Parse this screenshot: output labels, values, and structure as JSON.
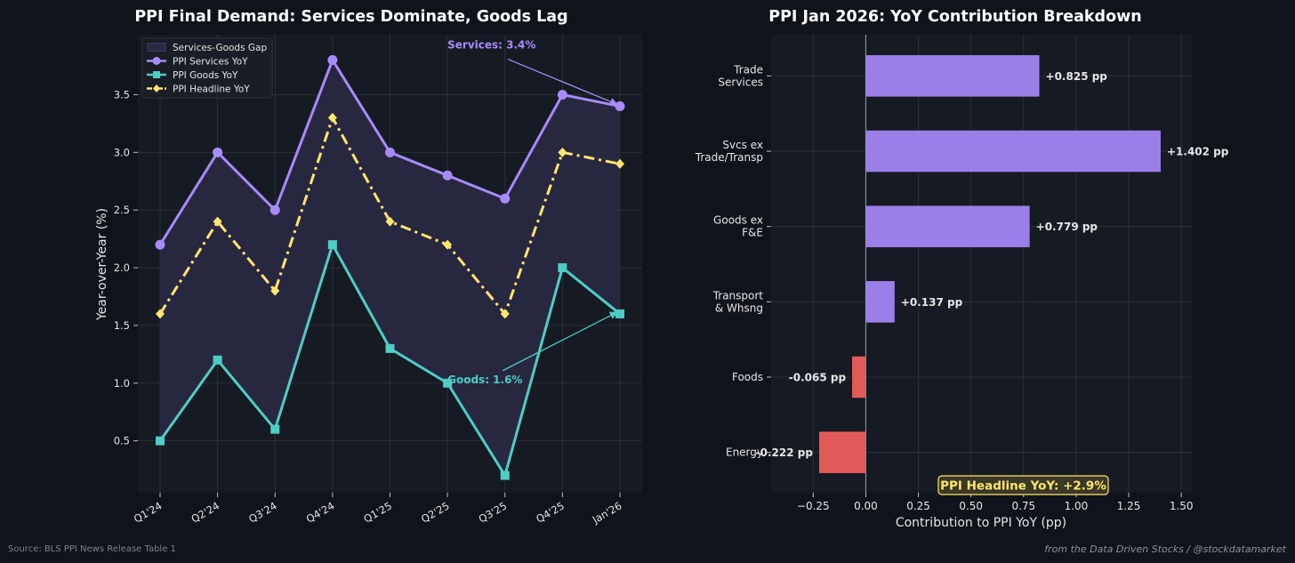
{
  "source_note": "Source: BLS PPI News Release Table 1",
  "credit_note": "from the Data Driven Stocks / @stockdatamarket",
  "colors": {
    "page_bg": "#0f131a",
    "axes_bg": "#161a22",
    "grid": "#2f343d",
    "services": "#a78bfa",
    "goods": "#4ecdc4",
    "headline": "#ffe66d",
    "gap_fill": "#2b2a45",
    "positive_bar": "#9b7fe8",
    "negative_bar": "#e05a5a",
    "text": "#e6e6e6"
  },
  "chart_data": [
    {
      "type": "line",
      "title": "PPI Final Demand: Services Dominate, Goods Lag",
      "xlabel": "",
      "ylabel": "Year-over-Year (%)",
      "categories": [
        "Q1'24",
        "Q2'24",
        "Q3'24",
        "Q4'24",
        "Q1'25",
        "Q2'25",
        "Q3'25",
        "Q4'25",
        "Jan'26"
      ],
      "ylim": [
        0.05,
        4.02
      ],
      "yticks": [
        0.5,
        1.0,
        1.5,
        2.0,
        2.5,
        3.0,
        3.5
      ],
      "ytick_labels": [
        "0.5",
        "1.0",
        "1.5",
        "2.0",
        "2.5",
        "3.0",
        "3.5"
      ],
      "grid": true,
      "legend_position": "top-left",
      "fill_between": {
        "name": "Services-Goods Gap",
        "upper": "PPI Services YoY",
        "lower": "PPI Goods YoY"
      },
      "series": [
        {
          "name": "PPI Services YoY",
          "values": [
            2.2,
            3.0,
            2.5,
            3.8,
            3.0,
            2.8,
            2.6,
            3.5,
            3.4
          ],
          "marker": "circle",
          "line_style": "solid",
          "color": "#a78bfa"
        },
        {
          "name": "PPI Goods YoY",
          "values": [
            0.5,
            1.2,
            0.6,
            2.2,
            1.3,
            1.0,
            0.2,
            2.0,
            1.6
          ],
          "marker": "square",
          "line_style": "solid",
          "color": "#4ecdc4"
        },
        {
          "name": "PPI Headline YoY",
          "values": [
            1.6,
            2.4,
            1.8,
            3.3,
            2.4,
            2.2,
            1.6,
            3.0,
            2.9
          ],
          "marker": "diamond",
          "line_style": "dashdot",
          "color": "#ffe66d"
        }
      ],
      "annotations": [
        {
          "text": "Services: 3.4%",
          "target_category": "Jan'26",
          "target_value": 3.4,
          "text_anchor_category": "Q2'25",
          "text_anchor_value": 3.9,
          "color": "#a78bfa"
        },
        {
          "text": "Goods: 1.6%",
          "target_category": "Jan'26",
          "target_value": 1.6,
          "text_anchor_category": "Q2'25",
          "text_anchor_value": 1.0,
          "color": "#4ecdc4"
        }
      ]
    },
    {
      "type": "bar",
      "orientation": "horizontal",
      "title": "PPI Jan 2026: YoY Contribution Breakdown",
      "xlabel": "Contribution to PPI YoY (pp)",
      "ylabel": "",
      "categories": [
        [
          "Trade",
          "Services"
        ],
        [
          "Svcs ex",
          "Trade/Transp"
        ],
        [
          "Goods ex",
          "F&E"
        ],
        [
          "Transport",
          "& Whsng"
        ],
        [
          "Foods"
        ],
        [
          "Energy"
        ]
      ],
      "values": [
        0.825,
        1.402,
        0.779,
        0.137,
        -0.065,
        -0.222
      ],
      "value_labels": [
        "+0.825 pp",
        "+1.402 pp",
        "+0.779 pp",
        "+0.137 pp",
        "-0.065 pp",
        "-0.222 pp"
      ],
      "xlim": [
        -0.45,
        1.55
      ],
      "xticks": [
        -0.25,
        0.0,
        0.25,
        0.5,
        0.75,
        1.0,
        1.25,
        1.5
      ],
      "xtick_labels": [
        "−0.25",
        "0.00",
        "0.25",
        "0.50",
        "0.75",
        "1.00",
        "1.25",
        "1.50"
      ],
      "grid": true,
      "callout": "PPI Headline YoY: +2.9%"
    }
  ]
}
